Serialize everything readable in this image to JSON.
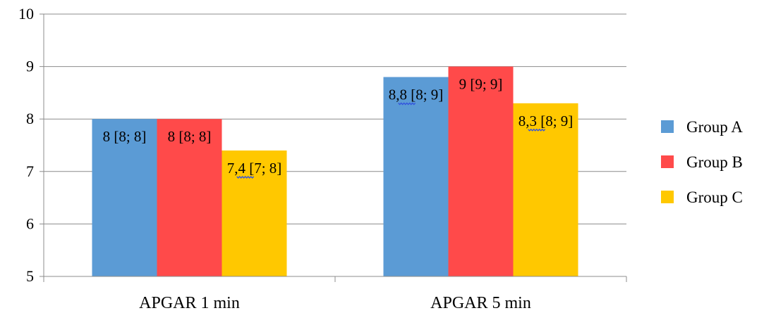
{
  "chart_data": {
    "type": "bar",
    "title": "",
    "xlabel": "",
    "ylabel": "",
    "categories": [
      "APGAR 1 min",
      "APGAR 5 min"
    ],
    "ylim": [
      5,
      10
    ],
    "yticks": [
      5,
      6,
      7,
      8,
      9,
      10
    ],
    "grid": true,
    "legend_position": "right",
    "series": [
      {
        "name": "Group A",
        "color": "#5b9bd5",
        "values": [
          8,
          8.8
        ],
        "labels": [
          "8 [8; 8]",
          "8,8 [8; 9]"
        ]
      },
      {
        "name": "Group B",
        "color": "#ff4a4a",
        "values": [
          8,
          9
        ],
        "labels": [
          "8 [8; 8]",
          "9 [9; 9]"
        ]
      },
      {
        "name": "Group C",
        "color": "#ffc800",
        "values": [
          7.4,
          8.3
        ],
        "labels": [
          "7,4 [7; 8]",
          "8,3 [8; 9]"
        ]
      }
    ]
  }
}
